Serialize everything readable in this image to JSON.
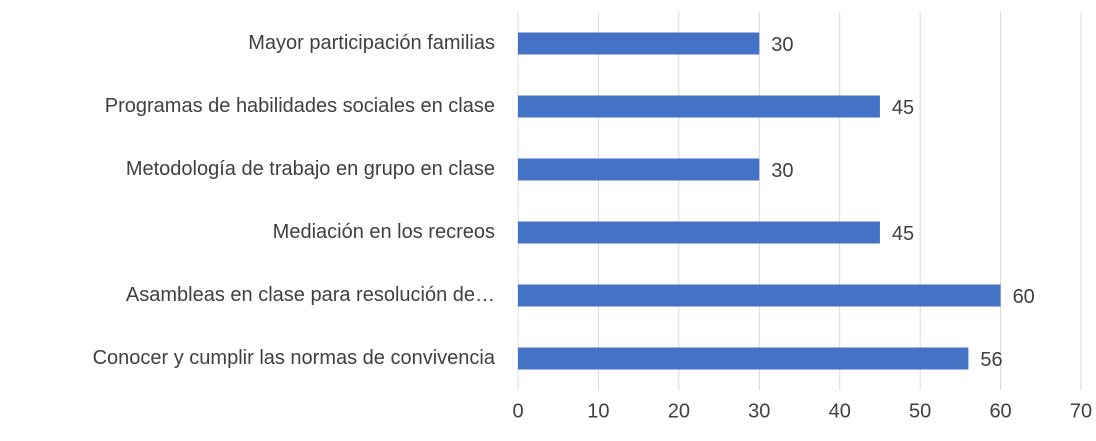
{
  "chart_data": {
    "type": "barh",
    "categories": [
      "Mayor participación familias",
      "Programas de habilidades sociales en clase",
      "Metodología de trabajo en grupo en clase",
      "Mediación en los recreos",
      "Asambleas en clase para resolución de…",
      "Conocer y cumplir las normas de convivencia"
    ],
    "values": [
      30,
      45,
      30,
      45,
      60,
      56
    ],
    "color": "#4472c4",
    "xlim": [
      0,
      70
    ],
    "xticks": [
      0,
      10,
      20,
      30,
      40,
      50,
      60,
      70
    ],
    "grid": true
  }
}
